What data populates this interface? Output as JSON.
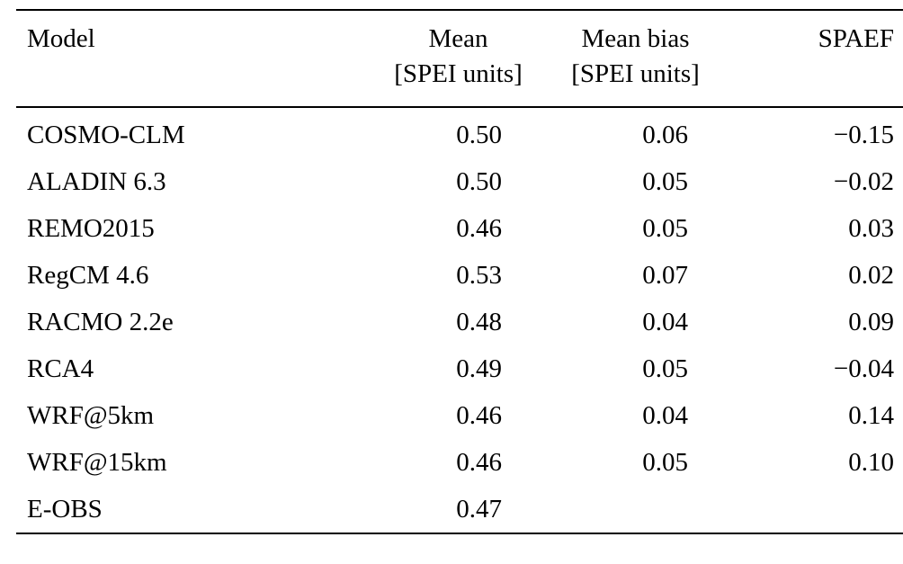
{
  "table": {
    "headers": {
      "model": "Model",
      "mean_line1": "Mean",
      "mean_line2": "[SPEI units]",
      "mean_bias_line1": "Mean bias",
      "mean_bias_line2": "[SPEI units]",
      "spaef": "SPAEF"
    },
    "rows": [
      {
        "model": "COSMO-CLM",
        "mean": "0.50",
        "mean_bias": "0.06",
        "spaef": "−0.15"
      },
      {
        "model": "ALADIN 6.3",
        "mean": "0.50",
        "mean_bias": "0.05",
        "spaef": "−0.02"
      },
      {
        "model": "REMO2015",
        "mean": "0.46",
        "mean_bias": "0.05",
        "spaef": "0.03"
      },
      {
        "model": "RegCM 4.6",
        "mean": "0.53",
        "mean_bias": "0.07",
        "spaef": "0.02"
      },
      {
        "model": "RACMO 2.2e",
        "mean": "0.48",
        "mean_bias": "0.04",
        "spaef": "0.09"
      },
      {
        "model": "RCA4",
        "mean": "0.49",
        "mean_bias": "0.05",
        "spaef": "−0.04"
      },
      {
        "model": "WRF@5km",
        "mean": "0.46",
        "mean_bias": "0.04",
        "spaef": "0.14"
      },
      {
        "model": "WRF@15km",
        "mean": "0.46",
        "mean_bias": "0.05",
        "spaef": "0.10"
      },
      {
        "model": "E-OBS",
        "mean": "0.47",
        "mean_bias": "",
        "spaef": ""
      }
    ]
  }
}
